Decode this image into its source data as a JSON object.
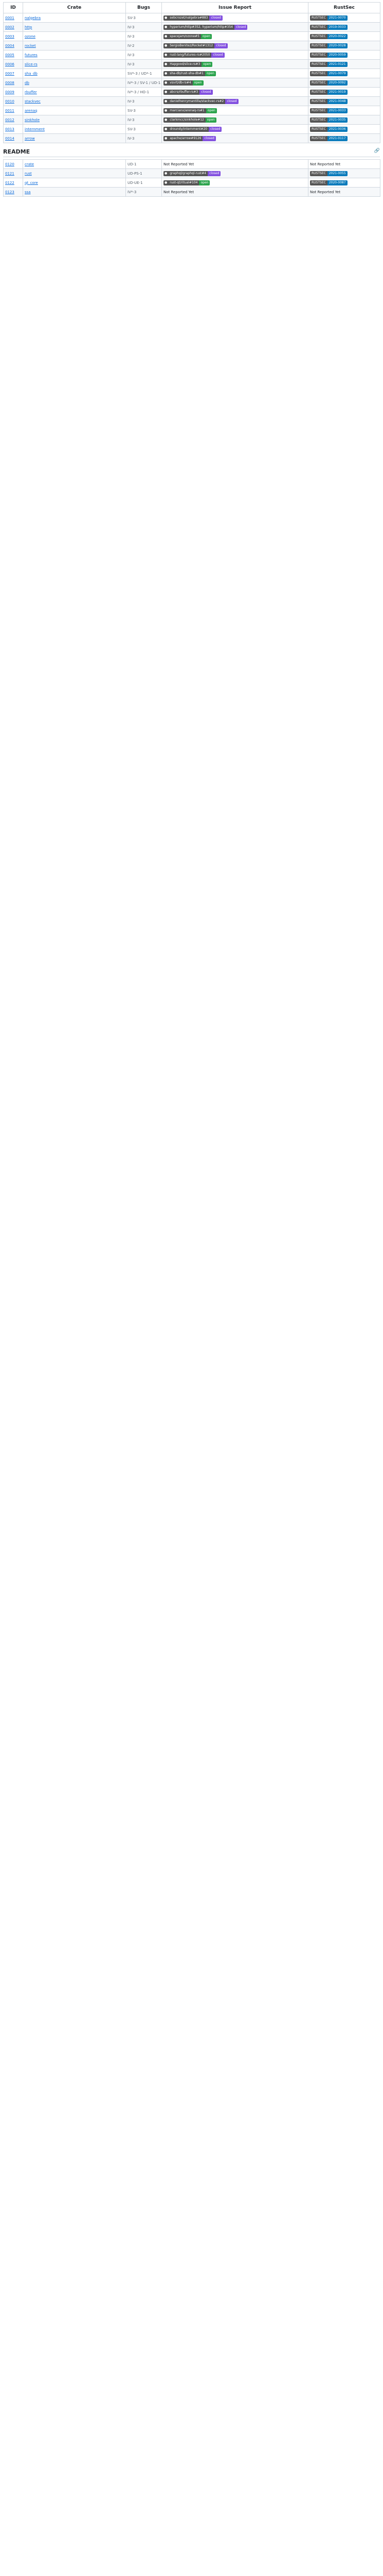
{
  "headers": {
    "id": "ID",
    "crate": "Crate",
    "bugs": "Bugs",
    "issue": "Issue Report",
    "rust": "RustSec"
  },
  "section_title": "README",
  "link_icon": "link-icon",
  "rows": [
    {
      "id": "0001",
      "crate": "nalgebra",
      "bugs": "SV-3",
      "issue": "sebcrozet/nalgebra#883",
      "state": "closed",
      "rust": "RUSTSEC-2021-0070"
    },
    {
      "id": "0002",
      "crate": "http",
      "bugs": "IV-3",
      "issue": "hyperium/http#352, hyperium/http#354",
      "state": "closed",
      "rust": "RUSTSEC-2019-0033"
    },
    {
      "id": "0003",
      "crate": "ozone",
      "bugs": "IV-3",
      "issue": "spacejam/ozone#5",
      "state": "open",
      "rust": "RUSTSEC-2020-0022"
    },
    {
      "id": "0004",
      "crate": "rocket",
      "bugs": "IV-2",
      "issue": "SergioBenitez/Rocket#1312",
      "state": "closed",
      "rust": "RUSTSEC-2020-0028"
    },
    {
      "id": "0005",
      "crate": "futures",
      "bugs": "IV-3",
      "issue": "rust-lang/futures-rs#2050",
      "state": "closed",
      "rust": "RUSTSEC-2020-0059"
    },
    {
      "id": "0006",
      "crate": "slice-rs",
      "bugs": "IV-3",
      "issue": "Hapgood/slice-rs#3",
      "state": "open",
      "rust": "RUSTSEC-2021-0121"
    },
    {
      "id": "0007",
      "crate": "sha_db",
      "bugs": "SV*-3 / UD*-1",
      "issue": "sha-db/rust-sha-db#1",
      "state": "open",
      "rust": "RUSTSEC-2021-0079"
    },
    {
      "id": "0008",
      "crate": "db",
      "bugs": "IV*-3 / SV-1 / UD-1",
      "issue": "vsvrt/db-rs#4",
      "state": "open",
      "rust": "RUSTSEC-2020-0092"
    },
    {
      "id": "0009",
      "crate": "rbuffer",
      "bugs": "IV*-3 / HO-1",
      "issue": "abcrs/rbuffer-rs#3",
      "state": "closed",
      "rust": "RUSTSEC-2021-0019"
    },
    {
      "id": "0010",
      "crate": "stackvec",
      "bugs": "IV-3",
      "issue": "danielhenrymantilla/stackvec-rs#2",
      "state": "closed",
      "rust": "RUSTSEC-2021-0048"
    },
    {
      "id": "0011",
      "crate": "arenaq",
      "bugs": "SV-3",
      "issue": "marcianx/arenaq-rs#1",
      "state": "open",
      "rust": "RUSTSEC-2021-0033"
    },
    {
      "id": "0012",
      "crate": "sinkhole",
      "bugs": "IV-3",
      "issue": "clarkmcc/sinkhole#12",
      "state": "open",
      "rust": "RUSTSEC-2021-0035"
    },
    {
      "id": "0013",
      "crate": "internment",
      "bugs": "SV-3",
      "issue": "droundy/internment#20",
      "state": "closed",
      "rust": "RUSTSEC-2021-0036"
    },
    {
      "id": "0014",
      "crate": "arrow",
      "bugs": "IV-3",
      "issue": "apache/arrow#9126",
      "state": "closed",
      "rust": "RUSTSEC-2021-0117"
    }
  ],
  "readme_rows": [
    {
      "id": "0120",
      "crate": "crate",
      "bugs": "UD-1",
      "issue": "Not Reported Yet",
      "rust": "Not Reported Yet"
    },
    {
      "id": "0121",
      "crate": "rust",
      "bugs": "UD-PS-1",
      "issue": "graphql/graphql-rust#4",
      "state": "closed",
      "rust": "RUSTSEC-2021-0055"
    },
    {
      "id": "0122",
      "crate": "qt_core",
      "bugs": "UD-UE-1",
      "issue": "rust-qt/ritual#104",
      "state": "open",
      "rust": "RUSTSEC-2020-0087"
    },
    {
      "id": "0123",
      "crate": "ssa",
      "bugs": "IV*-3",
      "issue": "Not Reported Yet",
      "rust": "Not Reported Yet"
    }
  ]
}
